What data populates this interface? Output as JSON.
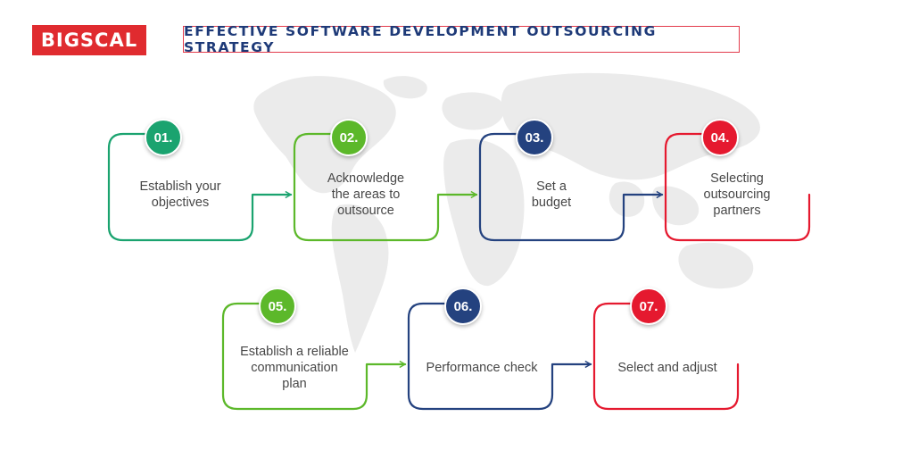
{
  "brand": {
    "logo_text": "BIGSCAL"
  },
  "title": "EFFECTIVE SOFTWARE DEVELOPMENT OUTSOURCING STRATEGY",
  "colors": {
    "teal": "#1aa36f",
    "green": "#5cb82a",
    "navy": "#24427f",
    "red": "#e5192f"
  },
  "steps": [
    {
      "number": "01.",
      "label": "Establish your\nobjectives",
      "color": "#1aa36f"
    },
    {
      "number": "02.",
      "label": "Acknowledge\nthe areas to\noutsource",
      "color": "#5cb82a"
    },
    {
      "number": "03.",
      "label": "Set a\nbudget",
      "color": "#24427f"
    },
    {
      "number": "04.",
      "label": "Selecting\noutsourcing\npartners",
      "color": "#e5192f"
    },
    {
      "number": "05.",
      "label": "Establish a reliable\ncommunication\nplan",
      "color": "#5cb82a"
    },
    {
      "number": "06.",
      "label": "Performance check",
      "color": "#24427f"
    },
    {
      "number": "07.",
      "label": "Select and adjust",
      "color": "#e5192f"
    }
  ]
}
